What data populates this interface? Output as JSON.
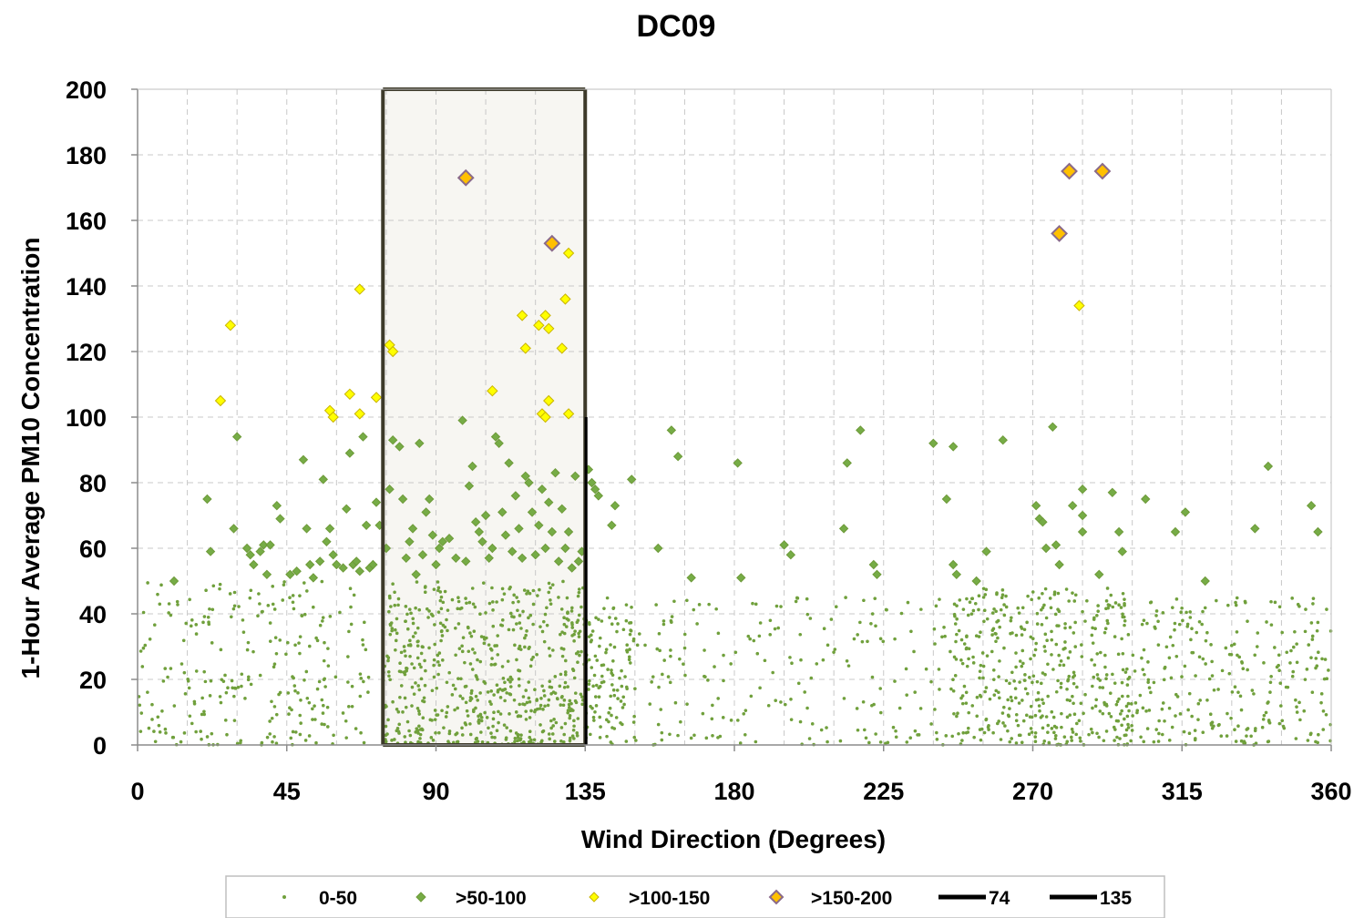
{
  "chart_data": {
    "type": "scatter",
    "title": "DC09",
    "xlabel": "Wind Direction (Degrees)",
    "ylabel": "1-Hour Average PM10 Concentration",
    "xlim": [
      0,
      360
    ],
    "ylim": [
      0,
      200
    ],
    "x_ticks": [
      0,
      45,
      90,
      135,
      180,
      225,
      270,
      315,
      360
    ],
    "y_ticks": [
      0,
      20,
      40,
      60,
      80,
      100,
      120,
      140,
      160,
      180,
      200
    ],
    "x_tick_labels": [
      "0",
      "45",
      "90",
      "135",
      "180",
      "225",
      "270",
      "315",
      "360"
    ],
    "y_tick_labels": [
      "0",
      "20",
      "40",
      "60",
      "80",
      "100",
      "120",
      "140",
      "160",
      "180",
      "200"
    ],
    "grid": true,
    "legend_position": "bottom",
    "highlight_sector": {
      "from": 74,
      "to": 135
    },
    "series": [
      {
        "name": "0-50",
        "marker": "dot",
        "color": "#70a03c",
        "note_density": "dense",
        "clusters": [
          {
            "x_range": [
              0,
              70
            ],
            "y_range": [
              0,
              50
            ],
            "count": 260
          },
          {
            "x_range": [
              74,
              135
            ],
            "y_range": [
              0,
              50
            ],
            "count": 620
          },
          {
            "x_range": [
              135,
              150
            ],
            "y_range": [
              0,
              45
            ],
            "count": 120
          },
          {
            "x_range": [
              150,
              245
            ],
            "y_range": [
              0,
              45
            ],
            "count": 200
          },
          {
            "x_range": [
              245,
              300
            ],
            "y_range": [
              0,
              48
            ],
            "count": 450
          },
          {
            "x_range": [
              300,
              360
            ],
            "y_range": [
              0,
              45
            ],
            "count": 260
          }
        ]
      },
      {
        "name": ">50-100",
        "marker": "diamond",
        "color": "#76ac46",
        "points": [
          [
            11,
            50
          ],
          [
            21,
            75
          ],
          [
            22,
            59
          ],
          [
            30,
            94
          ],
          [
            29,
            66
          ],
          [
            33,
            60
          ],
          [
            34,
            58
          ],
          [
            35,
            55
          ],
          [
            37,
            59
          ],
          [
            38,
            61
          ],
          [
            39,
            52
          ],
          [
            40,
            61
          ],
          [
            42,
            73
          ],
          [
            43,
            69
          ],
          [
            46,
            52
          ],
          [
            48,
            53
          ],
          [
            50,
            87
          ],
          [
            51,
            66
          ],
          [
            52,
            55
          ],
          [
            53,
            51
          ],
          [
            55,
            56
          ],
          [
            56,
            81
          ],
          [
            57,
            62
          ],
          [
            58,
            66
          ],
          [
            59,
            58
          ],
          [
            60,
            55
          ],
          [
            62,
            54
          ],
          [
            63,
            72
          ],
          [
            64,
            89
          ],
          [
            65,
            55
          ],
          [
            66,
            56
          ],
          [
            67,
            53
          ],
          [
            68,
            94
          ],
          [
            69,
            67
          ],
          [
            70,
            54
          ],
          [
            71,
            55
          ],
          [
            72,
            74
          ],
          [
            73,
            67
          ],
          [
            75,
            60
          ],
          [
            76,
            78
          ],
          [
            77,
            93
          ],
          [
            79,
            91
          ],
          [
            80,
            75
          ],
          [
            81,
            57
          ],
          [
            82,
            62
          ],
          [
            83,
            66
          ],
          [
            84,
            52
          ],
          [
            85,
            92
          ],
          [
            86,
            58
          ],
          [
            87,
            71
          ],
          [
            88,
            75
          ],
          [
            89,
            64
          ],
          [
            90,
            55
          ],
          [
            91,
            60
          ],
          [
            92,
            62
          ],
          [
            94,
            63
          ],
          [
            96,
            57
          ],
          [
            98,
            99
          ],
          [
            99,
            56
          ],
          [
            100,
            79
          ],
          [
            101,
            85
          ],
          [
            102,
            68
          ],
          [
            103,
            65
          ],
          [
            104,
            62
          ],
          [
            105,
            70
          ],
          [
            106,
            57
          ],
          [
            107,
            60
          ],
          [
            108,
            94
          ],
          [
            109,
            92
          ],
          [
            110,
            71
          ],
          [
            111,
            64
          ],
          [
            112,
            86
          ],
          [
            113,
            59
          ],
          [
            114,
            76
          ],
          [
            115,
            66
          ],
          [
            116,
            57
          ],
          [
            117,
            82
          ],
          [
            118,
            80
          ],
          [
            119,
            71
          ],
          [
            120,
            58
          ],
          [
            121,
            67
          ],
          [
            122,
            78
          ],
          [
            123,
            60
          ],
          [
            124,
            74
          ],
          [
            125,
            65
          ],
          [
            126,
            83
          ],
          [
            127,
            56
          ],
          [
            128,
            72
          ],
          [
            129,
            60
          ],
          [
            130,
            65
          ],
          [
            131,
            54
          ],
          [
            132,
            82
          ],
          [
            133,
            56
          ],
          [
            134,
            59
          ],
          [
            136,
            84
          ],
          [
            137,
            80
          ],
          [
            138,
            78
          ],
          [
            139,
            76
          ],
          [
            143,
            67
          ],
          [
            144,
            73
          ],
          [
            149,
            81
          ],
          [
            157,
            60
          ],
          [
            161,
            96
          ],
          [
            163,
            88
          ],
          [
            167,
            51
          ],
          [
            181,
            86
          ],
          [
            182,
            51
          ],
          [
            195,
            61
          ],
          [
            197,
            58
          ],
          [
            213,
            66
          ],
          [
            214,
            86
          ],
          [
            218,
            96
          ],
          [
            222,
            55
          ],
          [
            223,
            52
          ],
          [
            240,
            92
          ],
          [
            244,
            75
          ],
          [
            246,
            91
          ],
          [
            246,
            55
          ],
          [
            247,
            52
          ],
          [
            253,
            50
          ],
          [
            256,
            59
          ],
          [
            261,
            93
          ],
          [
            271,
            73
          ],
          [
            272,
            69
          ],
          [
            273,
            68
          ],
          [
            274,
            60
          ],
          [
            276,
            97
          ],
          [
            277,
            61
          ],
          [
            278,
            55
          ],
          [
            282,
            73
          ],
          [
            285,
            78
          ],
          [
            285,
            70
          ],
          [
            285,
            65
          ],
          [
            290,
            52
          ],
          [
            294,
            77
          ],
          [
            296,
            65
          ],
          [
            297,
            59
          ],
          [
            304,
            75
          ],
          [
            313,
            65
          ],
          [
            316,
            71
          ],
          [
            322,
            50
          ],
          [
            337,
            66
          ],
          [
            341,
            85
          ],
          [
            354,
            73
          ],
          [
            356,
            65
          ]
        ]
      },
      {
        "name": ">100-150",
        "marker": "diamond",
        "color": "#ffff00",
        "points": [
          [
            25,
            105
          ],
          [
            28,
            128
          ],
          [
            58,
            102
          ],
          [
            59,
            100
          ],
          [
            64,
            107
          ],
          [
            67,
            139
          ],
          [
            67,
            101
          ],
          [
            72,
            106
          ],
          [
            76,
            122
          ],
          [
            77,
            120
          ],
          [
            107,
            108
          ],
          [
            116,
            131
          ],
          [
            117,
            121
          ],
          [
            121,
            128
          ],
          [
            123,
            131
          ],
          [
            124,
            127
          ],
          [
            124,
            105
          ],
          [
            122,
            101
          ],
          [
            123,
            100
          ],
          [
            128,
            121
          ],
          [
            129,
            136
          ],
          [
            130,
            150
          ],
          [
            130,
            101
          ],
          [
            284,
            134
          ]
        ]
      },
      {
        "name": ">150-200",
        "marker": "diamond",
        "color": "#ffc000",
        "points": [
          [
            99,
            173
          ],
          [
            125,
            153
          ],
          [
            278,
            156
          ],
          [
            281,
            175
          ],
          [
            291,
            175
          ]
        ]
      },
      {
        "name": "74",
        "type": "line",
        "x": 74,
        "y_range": [
          0,
          200
        ]
      },
      {
        "name": "135",
        "type": "line",
        "x": 135,
        "y_range": [
          0,
          100
        ]
      }
    ]
  },
  "legend": {
    "items": [
      {
        "label": "0-50",
        "kind": "dot",
        "color": "#70a03c"
      },
      {
        "label": ">50-100",
        "kind": "diamond",
        "color": "#76ac46"
      },
      {
        "label": ">100-150",
        "kind": "diamond",
        "color": "#ffff00"
      },
      {
        "label": ">150-200",
        "kind": "diamond",
        "color": "#ffc000"
      },
      {
        "label": "74",
        "kind": "line",
        "color": "#000000"
      },
      {
        "label": "135",
        "kind": "line",
        "color": "#000000"
      }
    ]
  },
  "colors": {
    "sector_fill": "#f7f6f2",
    "sector_border": "#3d3a2a",
    "grid": "#c8c8c8",
    "diamond_outline_small": "#6e9a3a",
    "diamond_outline_large": "#8a6a8a"
  }
}
